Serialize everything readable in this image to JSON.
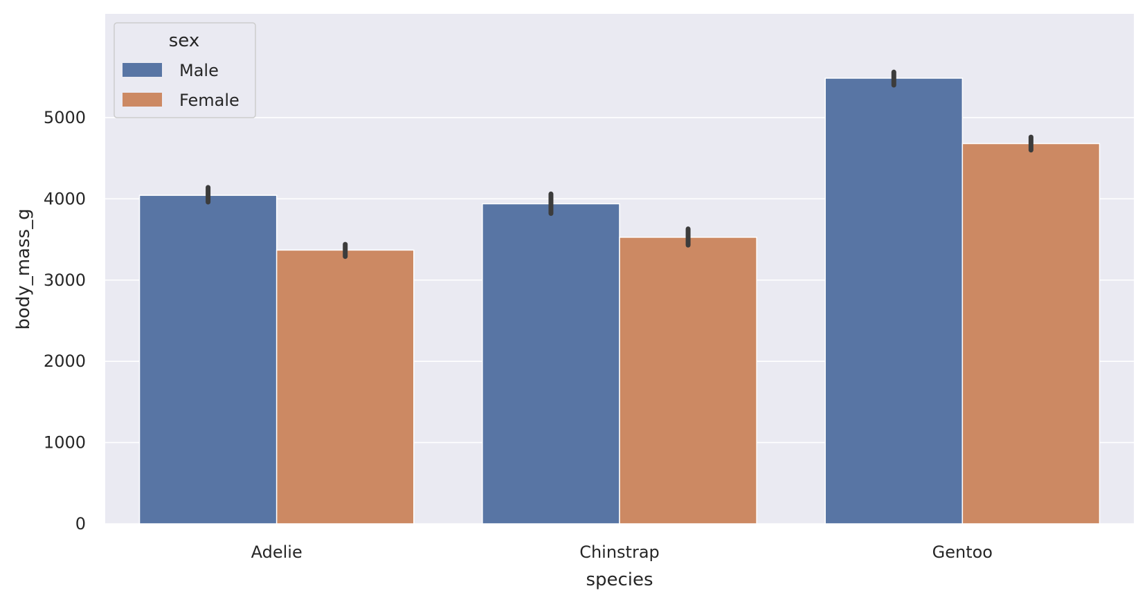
{
  "chart_data": {
    "type": "bar",
    "title": "",
    "xlabel": "species",
    "ylabel": "body_mass_g",
    "categories": [
      "Adelie",
      "Chinstrap",
      "Gentoo"
    ],
    "series": [
      {
        "name": "Male",
        "values": [
          4043,
          3939,
          5485
        ],
        "ci": [
          [
            3960,
            4140
          ],
          [
            3820,
            4060
          ],
          [
            5400,
            5560
          ]
        ]
      },
      {
        "name": "Female",
        "values": [
          3369,
          3527,
          4680
        ],
        "ci": [
          [
            3290,
            3440
          ],
          [
            3430,
            3630
          ],
          [
            4600,
            4760
          ]
        ]
      }
    ],
    "ylim": [
      0,
      5800
    ],
    "yticks": [
      0,
      1000,
      2000,
      3000,
      4000,
      5000
    ],
    "grid": true,
    "legend": {
      "title": "sex",
      "placement": "top-left"
    },
    "colors": {
      "Male": "#5875a4",
      "Female": "#cc8963",
      "background": "#eaeaf2",
      "grid": "#ffffff",
      "errorbar": "#3c3c3c"
    }
  }
}
